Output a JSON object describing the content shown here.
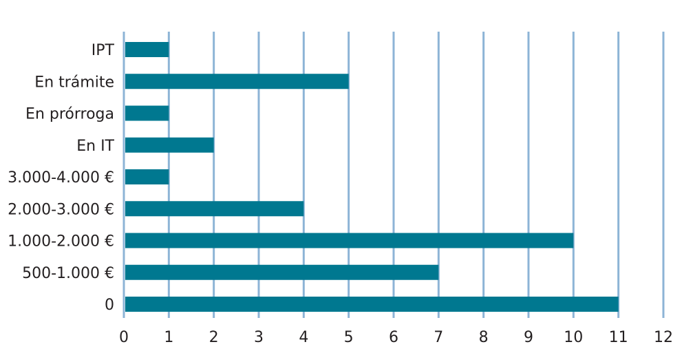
{
  "chart_data": {
    "type": "bar",
    "orientation": "horizontal",
    "categories": [
      "IPT",
      "En trámite",
      "En prórroga",
      "En IT",
      "3.000-4.000 €",
      "2.000-3.000 €",
      "1.000-2.000 €",
      "500-1.000 €",
      "0"
    ],
    "values": [
      1,
      5,
      1,
      2,
      1,
      4,
      10,
      7,
      11
    ],
    "xlim": [
      0,
      12
    ],
    "xticks": [
      "0",
      "1",
      "2",
      "3",
      "4",
      "5",
      "6",
      "7",
      "8",
      "9",
      "10",
      "11",
      "12"
    ],
    "title": "",
    "xlabel": "",
    "ylabel": "",
    "grid": "vertical",
    "legend": "none",
    "colors": {
      "bar": "#007890",
      "grid": "#8db4d6",
      "text": "#231f20"
    }
  }
}
